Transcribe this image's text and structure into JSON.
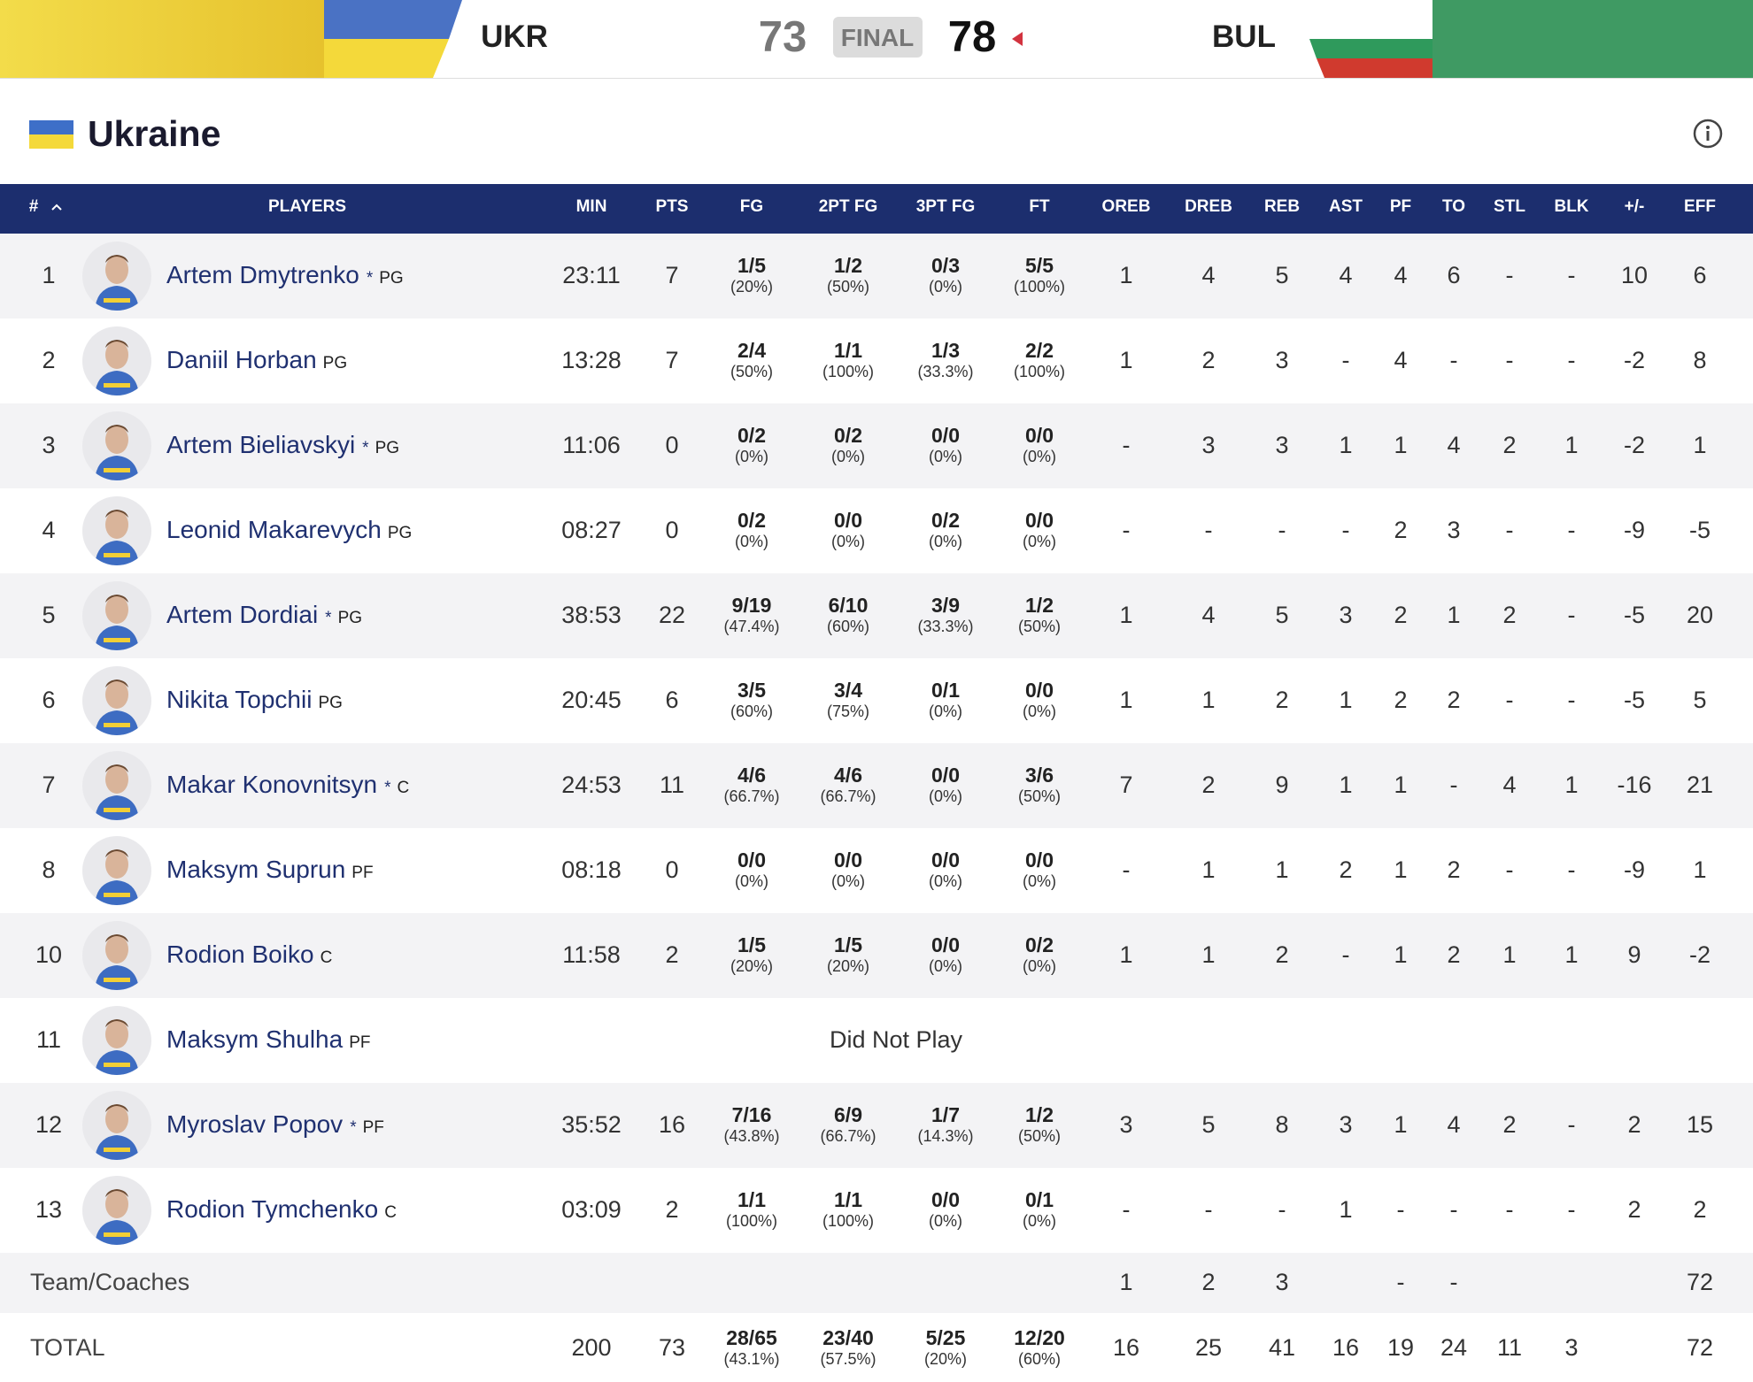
{
  "header": {
    "team1": "UKR",
    "score1": "73",
    "status": "FINAL",
    "score2": "78",
    "team2": "BUL"
  },
  "panel": {
    "title": "Ukraine"
  },
  "table": {
    "columns": [
      "#",
      "PLAYERS",
      "MIN",
      "PTS",
      "FG",
      "2PT FG",
      "3PT FG",
      "FT",
      "OREB",
      "DREB",
      "REB",
      "AST",
      "PF",
      "TO",
      "STL",
      "BLK",
      "+/-",
      "EFF"
    ],
    "rows": [
      {
        "number": "1",
        "name": "Artem Dmytrenko",
        "starter": "*",
        "position": "PG",
        "stats": [
          "23:11",
          "7",
          [
            "1/5",
            "(20%)"
          ],
          [
            "1/2",
            "(50%)"
          ],
          [
            "0/3",
            "(0%)"
          ],
          [
            "5/5",
            "(100%)"
          ],
          "1",
          "4",
          "5",
          "4",
          "4",
          "6",
          "-",
          "-",
          "10",
          "6"
        ]
      },
      {
        "number": "2",
        "name": "Daniil Horban",
        "position": "PG",
        "stats": [
          "13:28",
          "7",
          [
            "2/4",
            "(50%)"
          ],
          [
            "1/1",
            "(100%)"
          ],
          [
            "1/3",
            "(33.3%)"
          ],
          [
            "2/2",
            "(100%)"
          ],
          "1",
          "2",
          "3",
          "-",
          "4",
          "-",
          "-",
          "-",
          "-2",
          "8"
        ]
      },
      {
        "number": "3",
        "name": "Artem Bieliavskyi",
        "starter": "*",
        "position": "PG",
        "stats": [
          "11:06",
          "0",
          [
            "0/2",
            "(0%)"
          ],
          [
            "0/2",
            "(0%)"
          ],
          [
            "0/0",
            "(0%)"
          ],
          [
            "0/0",
            "(0%)"
          ],
          "-",
          "3",
          "3",
          "1",
          "1",
          "4",
          "2",
          "1",
          "-2",
          "1"
        ]
      },
      {
        "number": "4",
        "name": "Leonid Makarevych",
        "position": "PG",
        "stats": [
          "08:27",
          "0",
          [
            "0/2",
            "(0%)"
          ],
          [
            "0/0",
            "(0%)"
          ],
          [
            "0/2",
            "(0%)"
          ],
          [
            "0/0",
            "(0%)"
          ],
          "-",
          "-",
          "-",
          "-",
          "2",
          "3",
          "-",
          "-",
          "-9",
          "-5"
        ]
      },
      {
        "number": "5",
        "name": "Artem Dordiai",
        "starter": "*",
        "position": "PG",
        "stats": [
          "38:53",
          "22",
          [
            "9/19",
            "(47.4%)"
          ],
          [
            "6/10",
            "(60%)"
          ],
          [
            "3/9",
            "(33.3%)"
          ],
          [
            "1/2",
            "(50%)"
          ],
          "1",
          "4",
          "5",
          "3",
          "2",
          "1",
          "2",
          "-",
          "-5",
          "20"
        ]
      },
      {
        "number": "6",
        "name": "Nikita Topchii",
        "position": "PG",
        "stats": [
          "20:45",
          "6",
          [
            "3/5",
            "(60%)"
          ],
          [
            "3/4",
            "(75%)"
          ],
          [
            "0/1",
            "(0%)"
          ],
          [
            "0/0",
            "(0%)"
          ],
          "1",
          "1",
          "2",
          "1",
          "2",
          "2",
          "-",
          "-",
          "-5",
          "5"
        ]
      },
      {
        "number": "7",
        "name": "Makar Konovnitsyn",
        "starter": "*",
        "position": "C",
        "stats": [
          "24:53",
          "11",
          [
            "4/6",
            "(66.7%)"
          ],
          [
            "4/6",
            "(66.7%)"
          ],
          [
            "0/0",
            "(0%)"
          ],
          [
            "3/6",
            "(50%)"
          ],
          "7",
          "2",
          "9",
          "1",
          "1",
          "-",
          "4",
          "1",
          "-16",
          "21"
        ]
      },
      {
        "number": "8",
        "name": "Maksym Suprun",
        "position": "PF",
        "stats": [
          "08:18",
          "0",
          [
            "0/0",
            "(0%)"
          ],
          [
            "0/0",
            "(0%)"
          ],
          [
            "0/0",
            "(0%)"
          ],
          [
            "0/0",
            "(0%)"
          ],
          "-",
          "1",
          "1",
          "2",
          "1",
          "2",
          "-",
          "-",
          "-9",
          "1"
        ]
      },
      {
        "number": "10",
        "name": "Rodion Boiko",
        "position": "C",
        "stats": [
          "11:58",
          "2",
          [
            "1/5",
            "(20%)"
          ],
          [
            "1/5",
            "(20%)"
          ],
          [
            "0/0",
            "(0%)"
          ],
          [
            "0/2",
            "(0%)"
          ],
          "1",
          "1",
          "2",
          "-",
          "1",
          "2",
          "1",
          "1",
          "9",
          "-2"
        ]
      },
      {
        "number": "11",
        "name": "Maksym Shulha",
        "position": "PF",
        "note": "Did Not Play"
      },
      {
        "number": "12",
        "name": "Myroslav Popov",
        "starter": "*",
        "position": "PF",
        "stats": [
          "35:52",
          "16",
          [
            "7/16",
            "(43.8%)"
          ],
          [
            "6/9",
            "(66.7%)"
          ],
          [
            "1/7",
            "(14.3%)"
          ],
          [
            "1/2",
            "(50%)"
          ],
          "3",
          "5",
          "8",
          "3",
          "1",
          "4",
          "2",
          "-",
          "2",
          "15"
        ]
      },
      {
        "number": "13",
        "name": "Rodion Tymchenko",
        "position": "C",
        "stats": [
          "03:09",
          "2",
          [
            "1/1",
            "(100%)"
          ],
          [
            "1/1",
            "(100%)"
          ],
          [
            "0/0",
            "(0%)"
          ],
          [
            "0/1",
            "(0%)"
          ],
          "-",
          "-",
          "-",
          "1",
          "-",
          "-",
          "-",
          "-",
          "2",
          "2"
        ]
      }
    ],
    "team_row": {
      "label": "Team/Coaches",
      "stats": [
        null,
        null,
        null,
        null,
        null,
        null,
        "1",
        "2",
        "3",
        null,
        "-",
        "-",
        null,
        null,
        null,
        "72"
      ]
    },
    "total_row": {
      "label": "TOTAL",
      "stats": [
        "200",
        "73",
        [
          "28/65",
          "(43.1%)"
        ],
        [
          "23/40",
          "(57.5%)"
        ],
        [
          "5/25",
          "(20%)"
        ],
        [
          "12/20",
          "(60%)"
        ],
        "16",
        "25",
        "41",
        "16",
        "19",
        "24",
        "11",
        "3",
        null,
        "72"
      ]
    }
  }
}
